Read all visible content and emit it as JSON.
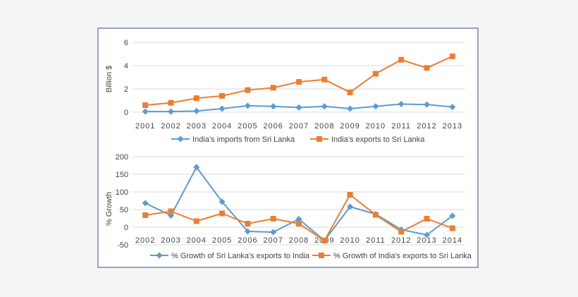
{
  "colors": {
    "blue": "#5b9bd5",
    "orange": "#ed7d31",
    "gridline": "#d9d9d9",
    "frame_border": "#2f4f8f",
    "frame_fill": "#ffffff",
    "axis_text": "#444444"
  },
  "chart_data": [
    {
      "type": "line",
      "title": "",
      "xlabel": "",
      "ylabel": "Billion $",
      "ylim": [
        0,
        6
      ],
      "yticks": [
        0,
        2,
        4,
        6
      ],
      "grid": true,
      "legend": "bottom",
      "categories": [
        "2001",
        "2002",
        "2003",
        "2004",
        "2005",
        "2006",
        "2007",
        "2008",
        "2009",
        "2010",
        "2011",
        "2012",
        "2013"
      ],
      "series": [
        {
          "name": "India's imports from Sri Lanka",
          "marker": "diamond",
          "color": "#5b9bd5",
          "values": [
            0.05,
            0.05,
            0.1,
            0.3,
            0.55,
            0.5,
            0.4,
            0.5,
            0.3,
            0.5,
            0.7,
            0.65,
            0.45
          ]
        },
        {
          "name": "India's exports to Sri Lanka",
          "marker": "square",
          "color": "#ed7d31",
          "values": [
            0.6,
            0.8,
            1.2,
            1.4,
            1.9,
            2.1,
            2.6,
            2.8,
            1.7,
            3.3,
            4.5,
            3.8,
            4.8
          ]
        }
      ]
    },
    {
      "type": "line",
      "title": "",
      "xlabel": "",
      "ylabel": "% Growth",
      "ylim": [
        -50,
        200
      ],
      "yticks": [
        -50,
        0,
        50,
        100,
        150,
        200
      ],
      "grid": true,
      "legend": "bottom",
      "categories": [
        "2002",
        "2003",
        "2004",
        "2005",
        "2006",
        "2007",
        "2008",
        "2009",
        "2010",
        "2011",
        "2012",
        "2013",
        "2014"
      ],
      "series": [
        {
          "name": "% Growth of Sri Lanka's exports  to India",
          "marker": "diamond",
          "color": "#5b9bd5",
          "values": [
            68,
            33,
            170,
            72,
            -12,
            -14,
            23,
            -38,
            58,
            37,
            -7,
            -22,
            32
          ]
        },
        {
          "name": "% Growth of India's exports to Sri Lanka",
          "marker": "square",
          "color": "#ed7d31",
          "values": [
            34,
            45,
            17,
            39,
            10,
            24,
            10,
            -38,
            92,
            35,
            -13,
            24,
            -3
          ]
        }
      ]
    }
  ]
}
